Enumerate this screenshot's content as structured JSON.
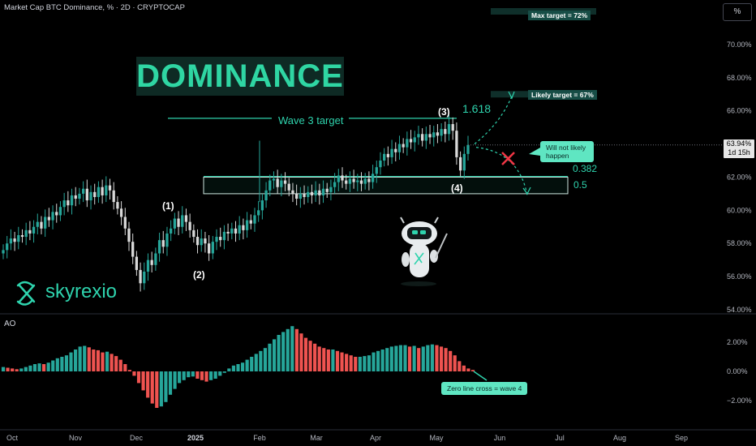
{
  "header": {
    "title": "Market Cap BTC Dominance, % · 2D · CRYPTOCAP",
    "scale_button": "%",
    "banner": "DOMINANCE"
  },
  "annotations": {
    "wave3_target": "Wave 3 target",
    "fib_1618": "1.618",
    "fib_0382": "0.382",
    "fib_05": "0.5",
    "max_target": "Max target = 72%",
    "likely_target": "Likely target = 67%",
    "not_likely": "Will not likely happen",
    "zero_cross": "Zero line cross = wave 4",
    "wave_1": "(1)",
    "wave_2": "(2)",
    "wave_3": "(3)",
    "wave_4": "(4)"
  },
  "price_tag": {
    "value": "63.94%",
    "countdown": "1d 15h"
  },
  "brand": {
    "name": "skyrexio"
  },
  "ao_label": "AO",
  "colors": {
    "background": "#000000",
    "bull": "#26a69a",
    "bear": "#ef5350",
    "accent": "#2ed3ad",
    "banner_bg": "#0e2a24",
    "callout_bg": "#5fe6c2",
    "cross": "#f23645"
  },
  "icons": [
    "logo-sx-icon",
    "robot-mascot-icon",
    "cross-mark-icon"
  ],
  "chart_data": [
    {
      "type": "candlestick",
      "title": "Market Cap BTC Dominance, %",
      "timeframe": "2D",
      "ylim": [
        54,
        72
      ],
      "y_ticks": [
        "54.00%",
        "56.00%",
        "58.00%",
        "60.00%",
        "62.00%",
        "64.00%",
        "66.00%",
        "68.00%",
        "70.00%"
      ],
      "x_ticks": [
        "Oct",
        "Nov",
        "Dec",
        "2025",
        "Feb",
        "Mar",
        "Apr",
        "May",
        "Jun",
        "Jul",
        "Aug",
        "Sep"
      ],
      "last_value": 63.94,
      "close": [
        57.6,
        58.0,
        58.3,
        58.1,
        58.5,
        58.4,
        58.8,
        58.6,
        59.0,
        59.3,
        58.9,
        59.6,
        59.4,
        59.9,
        59.7,
        60.2,
        60.6,
        60.3,
        60.9,
        60.7,
        61.0,
        61.3,
        60.6,
        61.1,
        60.8,
        61.4,
        60.9,
        61.5,
        61.2,
        60.5,
        60.1,
        59.6,
        58.9,
        58.1,
        57.2,
        56.4,
        55.6,
        56.3,
        57.0,
        56.7,
        57.4,
        58.2,
        57.8,
        58.6,
        58.9,
        59.5,
        59.0,
        59.7,
        59.3,
        58.8,
        58.4,
        57.9,
        58.3,
        58.0,
        57.4,
        58.1,
        58.4,
        58.2,
        58.7,
        58.6,
        58.9,
        58.6,
        59.1,
        58.8,
        59.4,
        59.2,
        59.7,
        60.0,
        60.6,
        61.2,
        61.8,
        61.9,
        61.4,
        61.8,
        61.6,
        61.2,
        61.0,
        60.7,
        61.0,
        60.8,
        61.1,
        60.9,
        61.2,
        60.9,
        61.3,
        61.1,
        61.4,
        61.7,
        62.1,
        61.8,
        61.6,
        61.9,
        61.7,
        61.8,
        61.6,
        61.9,
        61.7,
        62.2,
        62.6,
        63.0,
        63.4,
        63.2,
        63.7,
        63.5,
        64.0,
        63.8,
        64.3,
        64.1,
        64.4,
        64.6,
        64.2,
        64.6,
        64.4,
        64.7,
        64.5,
        64.9,
        64.6,
        65.2,
        64.8,
        63.2,
        62.4,
        63.4,
        63.94
      ],
      "ohlc_note": "approximate closes read from candlestick chart, Sep 2024 - May 2025",
      "levels": {
        "fib_0382": 62.0,
        "fib_0.5": 61.0,
        "wave3_target": 65.55,
        "likely_target": 67,
        "max_target": 72
      },
      "wave_points": [
        {
          "label": "(1)",
          "value": 60.1
        },
        {
          "label": "(2)",
          "value": 56.8
        },
        {
          "label": "(3)",
          "value": 65.4
        },
        {
          "label": "(4)",
          "value": 61.9
        }
      ]
    },
    {
      "type": "bar",
      "title": "AO",
      "ylim": [
        -2.5,
        3
      ],
      "y_ticks": [
        "2.00%",
        "0.00%",
        "−2.00%"
      ],
      "values": [
        0.3,
        0.25,
        0.2,
        0.15,
        0.2,
        0.3,
        0.4,
        0.5,
        0.55,
        0.5,
        0.6,
        0.75,
        0.9,
        1.0,
        1.1,
        1.3,
        1.5,
        1.7,
        1.75,
        1.65,
        1.5,
        1.45,
        1.3,
        1.35,
        1.2,
        1.05,
        0.8,
        0.5,
        0.1,
        -0.3,
        -0.8,
        -1.3,
        -1.8,
        -2.2,
        -2.5,
        -2.4,
        -2.1,
        -1.6,
        -1.2,
        -0.8,
        -0.6,
        -0.4,
        -0.35,
        -0.5,
        -0.6,
        -0.7,
        -0.6,
        -0.5,
        -0.3,
        -0.1,
        0.2,
        0.4,
        0.5,
        0.6,
        0.8,
        1.0,
        1.2,
        1.4,
        1.6,
        1.9,
        2.2,
        2.5,
        2.7,
        2.9,
        3.1,
        2.9,
        2.6,
        2.3,
        2.1,
        1.9,
        1.7,
        1.6,
        1.5,
        1.5,
        1.4,
        1.3,
        1.2,
        1.1,
        1.0,
        1.0,
        1.05,
        1.1,
        1.3,
        1.4,
        1.5,
        1.6,
        1.7,
        1.75,
        1.8,
        1.8,
        1.7,
        1.75,
        1.6,
        1.7,
        1.8,
        1.85,
        1.8,
        1.7,
        1.6,
        1.4,
        1.1,
        0.7,
        0.4,
        0.2,
        0.1
      ]
    }
  ]
}
